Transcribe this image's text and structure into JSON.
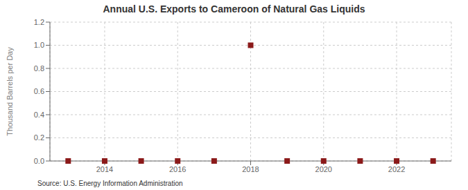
{
  "chart_data": {
    "type": "scatter",
    "title": "Annual U.S. Exports to Cameroon of Natural Gas Liquids",
    "ylabel": "Thousand Barrels per Day",
    "annotations": [
      "Source: U.S. Energy Information Administration"
    ],
    "x": [
      2013,
      2014,
      2015,
      2016,
      2017,
      2018,
      2019,
      2020,
      2021,
      2022,
      2023
    ],
    "values": [
      0.0,
      0.0,
      0.0,
      0.0,
      0.0,
      1.0,
      0.0,
      0.0,
      0.0,
      0.0,
      0.0
    ],
    "color": "#8b1a1a",
    "marker": "square",
    "line_style": "none",
    "xlim": [
      2012.5,
      2023.5
    ],
    "xticks": [
      2014,
      2016,
      2018,
      2020,
      2022
    ],
    "ylim": [
      0.0,
      1.2
    ],
    "yticks": [
      {
        "value": 0.0,
        "label": "0.0"
      },
      0.2,
      0.4,
      0.6,
      0.8,
      {
        "value": 1.0,
        "label": "1.0"
      },
      1.2
    ],
    "grid": true
  }
}
